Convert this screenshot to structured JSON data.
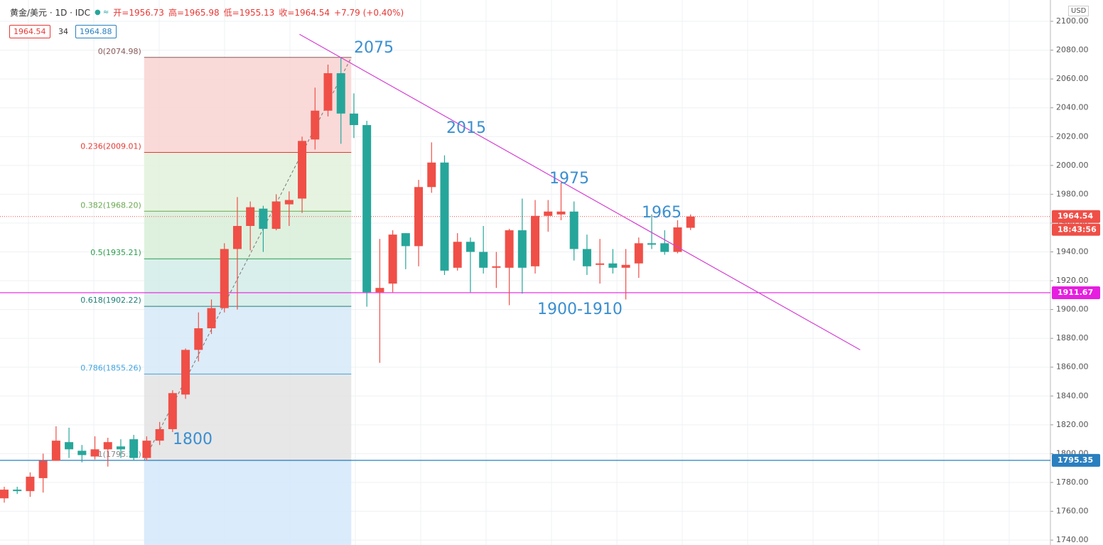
{
  "header": {
    "symbol": "黄金/美元 · 1D · IDC",
    "open": "开=1956.73",
    "high": "高=1965.98",
    "low": "低=1955.13",
    "close": "收=1964.54",
    "change": "+7.79 (+0.40%)",
    "bid": "1964.54",
    "spread": "34",
    "ask": "1964.88"
  },
  "chart_data": {
    "type": "candlestick",
    "currency": "USD",
    "candles": {
      "open": [
        1769,
        1775,
        1774,
        1783,
        1795,
        1808,
        1802,
        1798,
        1803,
        1805,
        1810,
        1797,
        1809,
        1817,
        1841,
        1872,
        1887,
        1901,
        1942,
        1958,
        1970,
        1956,
        1973,
        1977,
        2018,
        2038,
        2064,
        2036,
        2028,
        1912,
        1918,
        1953,
        1944,
        1985,
        2002,
        1929,
        1947,
        1940,
        1929,
        1929,
        1955,
        1930,
        1965,
        1966,
        1968,
        1942,
        1931,
        1932,
        1929,
        1932,
        1946,
        1946,
        1940,
        1956.73
      ],
      "high": [
        1777,
        1777,
        1787,
        1800,
        1819,
        1818,
        1806,
        1812,
        1811,
        1810,
        1813,
        1812,
        1822,
        1844,
        1873,
        1898,
        1907,
        1946,
        1978,
        1975,
        1972,
        1980,
        1982,
        2020,
        2054,
        2070,
        2075,
        2050,
        2031,
        1949,
        1955,
        1953,
        1990,
        2016,
        2007,
        1953,
        1950,
        1958,
        1940,
        1956,
        1977,
        1976,
        1976,
        1988,
        1975,
        1952,
        1949,
        1942,
        1942,
        1950,
        1966,
        1955,
        1962,
        1965.98
      ],
      "low": [
        1766,
        1772,
        1770,
        1773,
        1795,
        1797,
        1794,
        1796,
        1791,
        1797,
        1795,
        1795,
        1806,
        1815,
        1838,
        1864,
        1883,
        1898,
        1900,
        1941,
        1940,
        1955,
        1958,
        1967,
        2011,
        2034,
        2015,
        2019,
        1902,
        1863,
        1912,
        1928,
        1930,
        1981,
        1924,
        1927,
        1912,
        1925,
        1915,
        1903,
        1911,
        1925,
        1954,
        1962,
        1934,
        1924,
        1918,
        1925,
        1907,
        1922,
        1942,
        1938,
        1939,
        1955.13
      ],
      "close": [
        1775,
        1774,
        1784,
        1795,
        1809,
        1803,
        1799,
        1803,
        1808,
        1803,
        1797,
        1809,
        1817,
        1842,
        1872,
        1887,
        1901,
        1942,
        1958,
        1971,
        1956,
        1975,
        1976,
        2017,
        2038,
        2064,
        2036,
        2028,
        1912,
        1915,
        1952,
        1944,
        1985,
        2002,
        1927,
        1947,
        1940,
        1929,
        1930,
        1955,
        1929,
        1965,
        1968,
        1968,
        1942,
        1930,
        1932,
        1929,
        1931,
        1946,
        1945,
        1940,
        1957,
        1964.54
      ]
    },
    "up_color": "#ef4f47",
    "down_color": "#26a69a",
    "ylim": [
      1736.6,
      2114.8
    ],
    "yticks": [
      {
        "value": 1740,
        "label": "1740.00"
      },
      {
        "value": 1760,
        "label": "1760.00"
      },
      {
        "value": 1780,
        "label": "1780.00"
      },
      {
        "value": 1800,
        "label": "1800.00"
      },
      {
        "value": 1820,
        "label": "1820.00"
      },
      {
        "value": 1840,
        "label": "1840.00"
      },
      {
        "value": 1860,
        "label": "1860.00"
      },
      {
        "value": 1880,
        "label": "1880.00"
      },
      {
        "value": 1900,
        "label": "1900.00"
      },
      {
        "value": 1920,
        "label": "1920.00"
      },
      {
        "value": 1940,
        "label": "1940.00"
      },
      {
        "value": 1960,
        "label": "1960.00"
      },
      {
        "value": 1980,
        "label": "1980.00"
      },
      {
        "value": 2000,
        "label": "2000.00"
      },
      {
        "value": 2020,
        "label": "2020.00"
      },
      {
        "value": 2040,
        "label": "2040.00"
      },
      {
        "value": 2060,
        "label": "2060.00"
      },
      {
        "value": 2080,
        "label": "2080.00"
      },
      {
        "value": 2100,
        "label": "2100.00"
      }
    ],
    "grid": true,
    "price_lines": [
      {
        "value": 1964.54,
        "label": "1964.54",
        "color": "#ef4f47",
        "style": "dotted",
        "countdown": "18:43:56"
      },
      {
        "value": 1911.67,
        "label": "1911.67",
        "color": "#e61ee0",
        "style": "solid"
      },
      {
        "value": 1795.35,
        "label": "1795.35",
        "color": "#2a7fbf",
        "style": "solid"
      }
    ],
    "fibonacci": {
      "x": [
        10.8,
        26.8
      ],
      "levels": [
        {
          "value": 2074.98,
          "label": "0(2074.98)",
          "color": "#8a5a5a"
        },
        {
          "value": 2009.01,
          "label": "0.236(2009.01)",
          "color": "#e53935"
        },
        {
          "value": 1968.2,
          "label": "0.382(1968.20)",
          "color": "#6aa84f"
        },
        {
          "value": 1935.21,
          "label": "0.5(1935.21)",
          "color": "#2e9b4e"
        },
        {
          "value": 1902.22,
          "label": "0.618(1902.22)",
          "color": "#1f7f78"
        },
        {
          "value": 1855.26,
          "label": "0.786(1855.26)",
          "color": "#3fa3e0"
        },
        {
          "value": 1795.35,
          "label": "1(1795.35)",
          "color": "#888888"
        }
      ],
      "zones": [
        "#f9d4d2",
        "#e2f1dc",
        "#d8eed9",
        "#d2ece8",
        "#d6e9f7",
        "#e3e3e3",
        "#d3e7fb"
      ]
    },
    "trendline": {
      "x": [
        22.8,
        66.1
      ],
      "y": [
        2091,
        1872
      ],
      "color": "#d53fd3"
    },
    "annotations": [
      {
        "text": "2075"
      },
      {
        "text": "2015"
      },
      {
        "text": "1975"
      },
      {
        "text": "1965"
      },
      {
        "text": "1900-1910"
      },
      {
        "text": "1800"
      }
    ]
  }
}
